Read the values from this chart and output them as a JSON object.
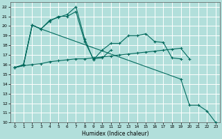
{
  "xlabel": "Humidex (Indice chaleur)",
  "ylabel": "",
  "background_color": "#b2dfdb",
  "grid_color": "#ffffff",
  "line_color": "#00695c",
  "xlim": [
    -0.5,
    23.5
  ],
  "ylim": [
    10,
    22.5
  ],
  "xticks": [
    0,
    1,
    2,
    3,
    4,
    5,
    6,
    7,
    8,
    9,
    10,
    11,
    12,
    13,
    14,
    15,
    16,
    17,
    18,
    19,
    20,
    21,
    22,
    23
  ],
  "yticks": [
    10,
    11,
    12,
    13,
    14,
    15,
    16,
    17,
    18,
    19,
    20,
    21,
    22
  ],
  "series": [
    {
      "x": [
        0,
        1,
        2,
        3,
        4,
        5,
        6,
        7,
        8,
        9,
        10,
        11,
        12,
        13,
        14,
        15,
        16,
        17,
        18,
        19,
        20
      ],
      "y": [
        15.7,
        15.9,
        16.0,
        16.1,
        16.3,
        16.4,
        16.5,
        16.6,
        16.6,
        16.7,
        16.8,
        16.9,
        17.0,
        17.1,
        17.2,
        17.3,
        17.4,
        17.5,
        17.6,
        17.7,
        16.6
      ]
    },
    {
      "x": [
        0,
        1,
        2,
        3,
        4,
        5,
        6,
        7,
        8,
        9,
        10,
        11,
        12,
        13,
        14,
        15,
        16,
        17,
        18,
        19
      ],
      "y": [
        15.7,
        16.0,
        20.1,
        19.7,
        20.6,
        20.9,
        21.2,
        22.0,
        18.7,
        16.5,
        17.5,
        18.2,
        18.2,
        19.0,
        19.0,
        19.2,
        18.4,
        18.3,
        16.7,
        16.6
      ]
    },
    {
      "x": [
        0,
        1,
        2,
        3,
        4,
        5,
        6,
        7,
        8,
        9,
        10,
        11
      ],
      "y": [
        15.7,
        16.0,
        20.1,
        19.7,
        20.5,
        21.0,
        21.0,
        21.5,
        18.4,
        16.6,
        16.7,
        17.5
      ]
    },
    {
      "comment": "starts ~15.7, jumps to 20 at x=2, then long diagonal drop: x=19->14.5, x=21->11.8, x=22->11.2, x=23->10",
      "x": [
        0,
        1,
        2,
        3,
        19,
        20,
        21,
        22,
        23
      ],
      "y": [
        15.7,
        15.9,
        20.1,
        19.7,
        14.5,
        11.8,
        11.8,
        11.2,
        10.0
      ]
    }
  ]
}
